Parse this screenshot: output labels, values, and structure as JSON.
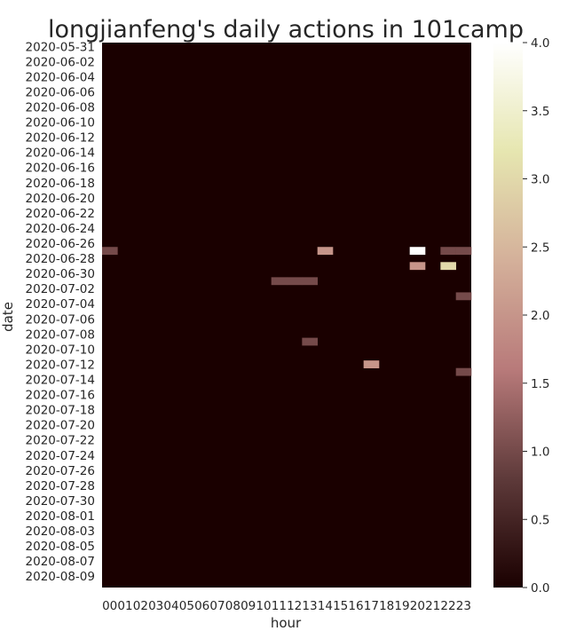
{
  "chart_data": {
    "type": "heatmap",
    "title": "longjianfeng's daily actions in 101camp",
    "xlabel": "hour",
    "ylabel": "date",
    "start_date": "2020-05-31",
    "end_date": "2020-08-10",
    "hours": [
      "00",
      "01",
      "02",
      "03",
      "04",
      "05",
      "06",
      "07",
      "08",
      "09",
      "10",
      "11",
      "12",
      "13",
      "14",
      "15",
      "16",
      "17",
      "18",
      "19",
      "20",
      "21",
      "22",
      "23"
    ],
    "date_tick_labels": [
      "2020-05-31",
      "2020-06-02",
      "2020-06-04",
      "2020-06-06",
      "2020-06-08",
      "2020-06-10",
      "2020-06-12",
      "2020-06-14",
      "2020-06-16",
      "2020-06-18",
      "2020-06-20",
      "2020-06-22",
      "2020-06-24",
      "2020-06-26",
      "2020-06-28",
      "2020-06-30",
      "2020-07-02",
      "2020-07-04",
      "2020-07-06",
      "2020-07-08",
      "2020-07-10",
      "2020-07-12",
      "2020-07-14",
      "2020-07-16",
      "2020-07-18",
      "2020-07-20",
      "2020-07-22",
      "2020-07-24",
      "2020-07-26",
      "2020-07-28",
      "2020-07-30",
      "2020-08-01",
      "2020-08-03",
      "2020-08-05",
      "2020-08-07",
      "2020-08-09"
    ],
    "value_range": [
      0,
      4
    ],
    "colorbar_ticks": [
      "0.0",
      "0.5",
      "1.0",
      "1.5",
      "2.0",
      "2.5",
      "3.0",
      "3.5",
      "4.0"
    ],
    "colormap": [
      "#1a0000",
      "#5e3a3a",
      "#b87a7a",
      "#d4b09a",
      "#e6e6b0",
      "#ffffff"
    ],
    "nonzero_cells": [
      {
        "date": "2020-06-27",
        "hour": "00",
        "value": 1
      },
      {
        "date": "2020-06-27",
        "hour": "14",
        "value": 2
      },
      {
        "date": "2020-06-27",
        "hour": "20",
        "value": 4
      },
      {
        "date": "2020-06-27",
        "hour": "22",
        "value": 1
      },
      {
        "date": "2020-06-27",
        "hour": "23",
        "value": 1
      },
      {
        "date": "2020-06-29",
        "hour": "20",
        "value": 2
      },
      {
        "date": "2020-06-29",
        "hour": "22",
        "value": 3
      },
      {
        "date": "2020-07-01",
        "hour": "11",
        "value": 1
      },
      {
        "date": "2020-07-01",
        "hour": "12",
        "value": 1
      },
      {
        "date": "2020-07-01",
        "hour": "13",
        "value": 1
      },
      {
        "date": "2020-07-03",
        "hour": "23",
        "value": 1
      },
      {
        "date": "2020-07-09",
        "hour": "13",
        "value": 1
      },
      {
        "date": "2020-07-12",
        "hour": "17",
        "value": 2
      },
      {
        "date": "2020-07-13",
        "hour": "23",
        "value": 1
      }
    ]
  }
}
